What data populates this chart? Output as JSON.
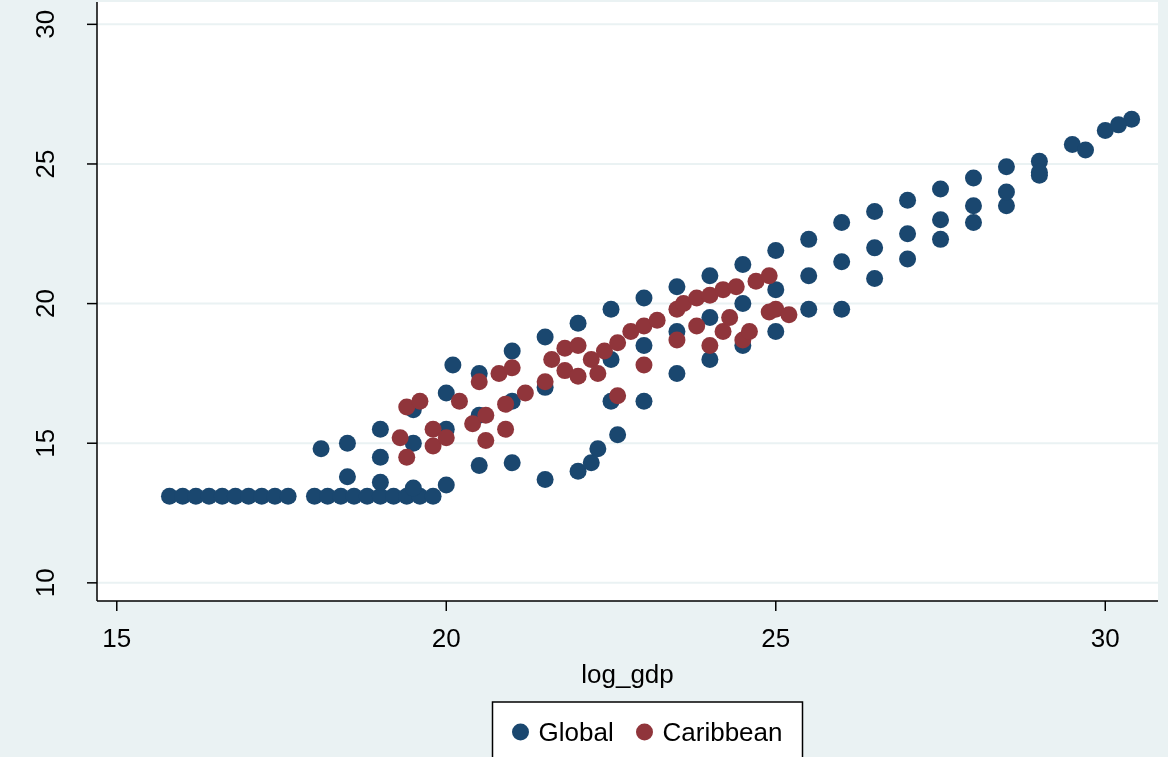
{
  "chart_data": {
    "type": "scatter",
    "xlabel": "log_gdp",
    "xlim": [
      14.7,
      30.8
    ],
    "ylim": [
      9.35,
      30.8
    ],
    "xticks": [
      15,
      20,
      25,
      30
    ],
    "yticks": [
      10,
      15,
      20,
      25,
      30
    ],
    "grid": "y",
    "legend": "bottom",
    "marker": "circle",
    "series": [
      {
        "name": "Global",
        "color": "#1a476f",
        "x": [
          15.8,
          16.0,
          16.2,
          16.4,
          16.6,
          16.8,
          17.0,
          17.2,
          17.4,
          17.6,
          18.0,
          18.2,
          18.4,
          18.6,
          18.8,
          19.0,
          19.2,
          19.4,
          19.6,
          19.8,
          18.1,
          18.5,
          19.0,
          19.5,
          20,
          20.5,
          21,
          21.5,
          22,
          22.5,
          23,
          23.5,
          24,
          24.5,
          25,
          25.5,
          26,
          26.5,
          27,
          27.5,
          28,
          28.5,
          29,
          29.5,
          30,
          30.4,
          18.5,
          19,
          19.5,
          20,
          20.5,
          21,
          21.5,
          22,
          22.2,
          22.6,
          23,
          23.5,
          24,
          24.5,
          25,
          25.5,
          26,
          26.5,
          27,
          27.5,
          28,
          28.5,
          29,
          29.7,
          19,
          19.5,
          20,
          20.5,
          21,
          21.5,
          22.5,
          23,
          23.5,
          24,
          24.5,
          25,
          25.5,
          26,
          26.5,
          27,
          27.5,
          28,
          28.5,
          29,
          30.2,
          20.1,
          22.5,
          22.3
        ],
        "values": [
          13.1,
          13.1,
          13.1,
          13.1,
          13.1,
          13.1,
          13.1,
          13.1,
          13.1,
          13.1,
          13.1,
          13.1,
          13.1,
          13.1,
          13.1,
          13.1,
          13.1,
          13.1,
          13.1,
          13.1,
          14.8,
          15.0,
          15.5,
          16.2,
          16.8,
          17.5,
          18.3,
          18.8,
          19.3,
          19.8,
          20.2,
          20.6,
          21.0,
          21.4,
          21.9,
          22.3,
          22.9,
          23.3,
          23.7,
          24.1,
          24.5,
          24.9,
          25.1,
          25.7,
          26.2,
          26.6,
          13.8,
          13.6,
          13.4,
          13.5,
          14.2,
          14.3,
          13.7,
          14.0,
          14.3,
          15.3,
          16.5,
          17.5,
          18.0,
          18.5,
          19.0,
          19.8,
          19.8,
          20.9,
          21.6,
          22.3,
          22.9,
          23.5,
          24.6,
          25.5,
          14.5,
          15.0,
          15.5,
          16.0,
          16.5,
          17.0,
          18.0,
          18.5,
          19.0,
          19.5,
          20.0,
          20.5,
          21.0,
          21.5,
          22.0,
          22.5,
          23.0,
          23.5,
          24.0,
          24.7,
          26.4,
          17.8,
          16.5,
          14.8
        ]
      },
      {
        "name": "Caribbean",
        "color": "#90353b",
        "x": [
          19.3,
          19.4,
          19.6,
          19.8,
          19.4,
          19.8,
          20.0,
          20.2,
          20.4,
          20.6,
          20.5,
          20.8,
          21.0,
          20.9,
          21.2,
          21.5,
          21.8,
          21.6,
          21.8,
          22.0,
          22.2,
          22.4,
          22.6,
          22.8,
          23.0,
          23.2,
          23.5,
          23.6,
          23.8,
          24.0,
          24.2,
          24.4,
          24.7,
          24.9,
          22.0,
          22.3,
          22.6,
          20.9,
          20.6,
          23.0,
          23.5,
          24.0,
          24.2,
          24.5,
          24.6,
          24.9,
          25.0,
          25.2,
          24.3,
          23.8
        ],
        "values": [
          15.2,
          16.3,
          16.5,
          15.5,
          14.5,
          14.9,
          15.2,
          16.5,
          15.7,
          16.0,
          17.2,
          17.5,
          17.7,
          16.4,
          16.8,
          17.2,
          17.6,
          18.0,
          18.4,
          18.5,
          18.0,
          18.3,
          18.6,
          19.0,
          19.2,
          19.4,
          19.8,
          20.0,
          20.2,
          20.3,
          20.5,
          20.6,
          20.8,
          21.0,
          17.4,
          17.5,
          16.7,
          15.5,
          15.1,
          17.8,
          18.7,
          18.5,
          19.0,
          18.7,
          19.0,
          19.7,
          19.8,
          19.6,
          19.5,
          19.2
        ]
      }
    ]
  }
}
